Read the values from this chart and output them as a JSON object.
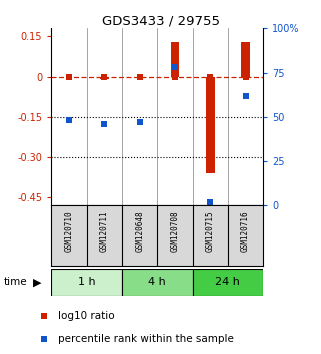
{
  "title": "GDS3433 / 29755",
  "samples": [
    "GSM120710",
    "GSM120711",
    "GSM120648",
    "GSM120708",
    "GSM120715",
    "GSM120716"
  ],
  "log10_ratio": [
    0.0,
    -0.01,
    0.0,
    0.13,
    -0.36,
    0.13
  ],
  "percentile_rank": [
    48,
    46,
    47,
    78,
    2,
    62
  ],
  "time_groups": [
    {
      "label": "1 h",
      "start": 0,
      "end": 1,
      "color": "#ccf0cc"
    },
    {
      "label": "4 h",
      "start": 2,
      "end": 3,
      "color": "#88dd88"
    },
    {
      "label": "24 h",
      "start": 4,
      "end": 5,
      "color": "#44cc44"
    }
  ],
  "ylim_left": [
    -0.48,
    0.18
  ],
  "ylim_right": [
    0,
    100
  ],
  "yticks_left": [
    0.15,
    0.0,
    -0.15,
    -0.3,
    -0.45
  ],
  "ytick_labels_left": [
    "0.15",
    "0",
    "-0.15",
    "-0.30",
    "-0.45"
  ],
  "yticks_right": [
    100,
    75,
    50,
    25,
    0
  ],
  "ytick_labels_right": [
    "100%",
    "75",
    "50",
    "25",
    "0"
  ],
  "bar_color": "#cc2200",
  "red_color": "#cc2200",
  "blue_color": "#1155cc",
  "sample_bg": "#d8d8d8",
  "bar_width": 0.25
}
